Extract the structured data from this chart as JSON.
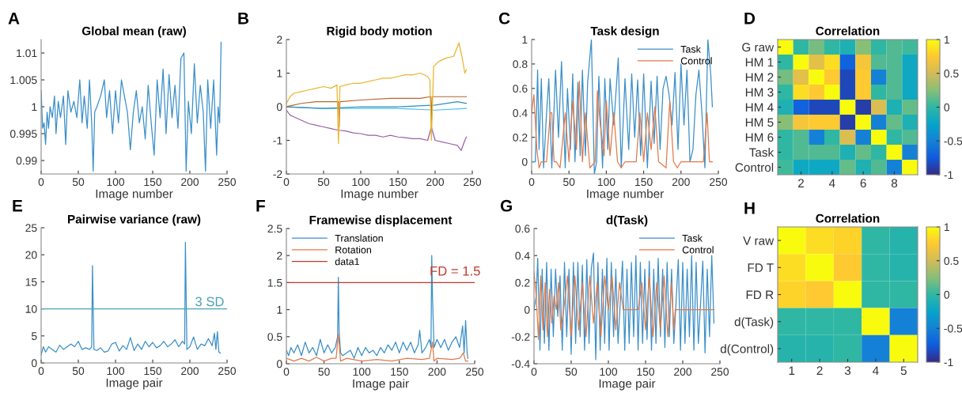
{
  "chart_data": [
    {
      "type": "line",
      "title": "Global mean (raw)",
      "xlabel": "Image number",
      "annotations": [
        "A"
      ],
      "xlim": [
        0,
        250
      ],
      "xticks": [
        0,
        50,
        100,
        150,
        200,
        250
      ],
      "ylim": [
        0.9875,
        1.0125
      ],
      "yticks": [
        0.99,
        0.995,
        1,
        1.005,
        1.01
      ],
      "grid": false,
      "legend": false,
      "series": [
        {
          "color": "#3a8fc8",
          "x": [
            0,
            2,
            4,
            6,
            8,
            10,
            12,
            15,
            18,
            20,
            23,
            26,
            30,
            33,
            36,
            40,
            44,
            48,
            52,
            55,
            58,
            62,
            65,
            68,
            70,
            72,
            75,
            80,
            85,
            88,
            92,
            96,
            100,
            104,
            108,
            112,
            116,
            120,
            124,
            128,
            132,
            136,
            140,
            144,
            148,
            152,
            156,
            160,
            164,
            168,
            172,
            176,
            180,
            184,
            188,
            192,
            195,
            198,
            202,
            206,
            210,
            214,
            218,
            221,
            224,
            228,
            232,
            236,
            238,
            240,
            242
          ],
          "values": [
            1.003,
            0.996,
            0.997,
            0.993,
            0.999,
            0.996,
            1.0,
            0.998,
            1.002,
            0.995,
            1.001,
            0.998,
            1.002,
            0.993,
            1.003,
            0.999,
            1.001,
            0.998,
            1.005,
            0.997,
            1.002,
            0.996,
            1.005,
            0.997,
            0.988,
            0.999,
            1.0,
            1.002,
            1.005,
            0.998,
            1.003,
            0.995,
            1.003,
            0.997,
            1.005,
            1.002,
            0.999,
            0.992,
            0.999,
            1.003,
            0.997,
            1.0,
            0.994,
            1.004,
            0.997,
            0.991,
            1.005,
            0.998,
            1.007,
            0.995,
            1.006,
            0.998,
            1.004,
            0.996,
            1.009,
            1.01,
            0.988,
            1.001,
            0.995,
            1.008,
            0.997,
            1.004,
            0.999,
            0.988,
            1.005,
            0.996,
            1.005,
            0.991,
            1.0,
            0.997,
            1.012
          ]
        }
      ]
    },
    {
      "type": "line",
      "title": "Rigid body motion",
      "xlabel": "Image number",
      "annotations": [
        "B"
      ],
      "xlim": [
        0,
        250
      ],
      "xticks": [
        0,
        50,
        100,
        150,
        200,
        250
      ],
      "ylim": [
        -2,
        2
      ],
      "yticks": [
        -2,
        -1,
        0,
        1,
        2
      ],
      "grid": false,
      "legend": false,
      "series": [
        {
          "color": "#4dbeee",
          "x": [
            0,
            50,
            100,
            150,
            200,
            242
          ],
          "values": [
            0,
            -0.05,
            -0.05,
            -0.05,
            -0.1,
            -0.05
          ]
        },
        {
          "color": "#2f8fbf",
          "x": [
            0,
            50,
            100,
            150,
            200,
            230,
            242
          ],
          "values": [
            0,
            -0.05,
            0.0,
            0.0,
            0.05,
            0.15,
            0.1
          ]
        },
        {
          "color": "#b8652a",
          "x": [
            0,
            20,
            40,
            60,
            70,
            71,
            72,
            100,
            140,
            180,
            194,
            195,
            196,
            220,
            242
          ],
          "values": [
            0,
            0.1,
            0.15,
            0.15,
            0.15,
            -0.6,
            0.15,
            0.2,
            0.25,
            0.25,
            0.3,
            -0.5,
            0.3,
            0.3,
            0.3
          ]
        },
        {
          "color": "#9a5fa8",
          "x": [
            0,
            5,
            10,
            20,
            30,
            40,
            50,
            60,
            70,
            80,
            90,
            100,
            110,
            120,
            130,
            140,
            150,
            160,
            170,
            180,
            190,
            195,
            200,
            210,
            220,
            230,
            235,
            240,
            242
          ],
          "values": [
            -0.1,
            -0.25,
            -0.3,
            -0.4,
            -0.5,
            -0.55,
            -0.6,
            -0.65,
            -0.7,
            -0.72,
            -0.78,
            -0.8,
            -0.85,
            -0.85,
            -0.9,
            -0.85,
            -0.9,
            -0.92,
            -0.95,
            -0.95,
            -1.0,
            -0.6,
            -1.0,
            -1.05,
            -1.1,
            -1.15,
            -1.3,
            -1.0,
            -0.9
          ]
        },
        {
          "color": "#e8b52e",
          "x": [
            0,
            5,
            10,
            20,
            30,
            40,
            50,
            60,
            68,
            70,
            72,
            80,
            90,
            100,
            110,
            120,
            130,
            140,
            150,
            160,
            170,
            180,
            190,
            193,
            195,
            198,
            205,
            215,
            225,
            232,
            236,
            240,
            242
          ],
          "values": [
            0.1,
            0.3,
            0.4,
            0.45,
            0.5,
            0.55,
            0.6,
            0.55,
            0.65,
            -1.1,
            0.6,
            0.65,
            0.7,
            0.7,
            0.75,
            0.8,
            0.85,
            0.85,
            0.9,
            0.95,
            0.95,
            1.0,
            0.9,
            0.8,
            -1.0,
            1.2,
            1.35,
            1.45,
            1.5,
            1.9,
            1.5,
            1.0,
            1.1
          ]
        }
      ]
    },
    {
      "type": "line",
      "title": "Task design",
      "xlabel": "Image number",
      "annotations": [
        "C"
      ],
      "xlim": [
        0,
        250
      ],
      "xticks": [
        0,
        50,
        100,
        150,
        200,
        250
      ],
      "ylim": [
        -0.1,
        1
      ],
      "yticks": [
        0,
        0.2,
        0.4,
        0.6,
        0.8,
        1
      ],
      "grid": false,
      "legend": "top right",
      "series": [
        {
          "name": "Task",
          "color": "#3a8fc8",
          "x": [
            0,
            5,
            8,
            10,
            13,
            16,
            20,
            23,
            27,
            32,
            36,
            40,
            45,
            48,
            52,
            55,
            58,
            62,
            65,
            68,
            72,
            75,
            80,
            84,
            87,
            90,
            95,
            98,
            102,
            105,
            110,
            116,
            120,
            125,
            130,
            134,
            138,
            142,
            146,
            150,
            155,
            160,
            164,
            168,
            172,
            176,
            180,
            184,
            188,
            192,
            196,
            200,
            204,
            208,
            212,
            216,
            220,
            224,
            228,
            232,
            236,
            240,
            242
          ],
          "values": [
            0,
            0,
            0.75,
            0.1,
            0.68,
            -0.05,
            0.4,
            0.68,
            -0.05,
            0.75,
            0.2,
            0.82,
            -0.05,
            0.6,
            0.1,
            0.72,
            0,
            0.65,
            0.05,
            0.75,
            0.05,
            0.65,
            1.0,
            -0.1,
            0.0,
            0.7,
            -0.05,
            0.68,
            0.1,
            0.68,
            0.3,
            0.85,
            -0.05,
            0.68,
            0.1,
            0.72,
            0.2,
            0.67,
            0.05,
            0.72,
            -0.05,
            0.66,
            0.15,
            0.7,
            0.1,
            0.6,
            0.7,
            0.55,
            0.3,
            0.73,
            0.1,
            0.8,
            0.3,
            0.75,
            0,
            0.1,
            0.55,
            0.75,
            0.4,
            -0.05,
            1.0,
            0.7,
            0.45
          ]
        },
        {
          "name": "Control",
          "color": "#e07a4a",
          "x": [
            0,
            3,
            7,
            10,
            13,
            20,
            25,
            27,
            30,
            33,
            38,
            45,
            50,
            55,
            60,
            64,
            68,
            72,
            78,
            85,
            88,
            92,
            97,
            100,
            105,
            110,
            115,
            120,
            125,
            130,
            140,
            145,
            150,
            155,
            160,
            165,
            170,
            180,
            185,
            190,
            195,
            200,
            210,
            220,
            230,
            235,
            238,
            242
          ],
          "values": [
            0.4,
            0.55,
            0.1,
            -0.05,
            0.0,
            0.0,
            0.4,
            0.4,
            0.0,
            0.0,
            -0.05,
            0.4,
            0.0,
            0.5,
            0.1,
            0.66,
            0.0,
            0.4,
            -0.05,
            0.0,
            0.58,
            0.3,
            0.05,
            0.5,
            0.05,
            0.4,
            0.0,
            -0.05,
            0.0,
            0.0,
            0.0,
            0.4,
            0.0,
            0.4,
            0.1,
            0.45,
            0.0,
            -0.05,
            0.5,
            0.0,
            -0.05,
            0.0,
            0.0,
            0.0,
            0.0,
            0.4,
            0.0,
            0.0
          ]
        }
      ]
    },
    {
      "type": "heatmap",
      "title": "Correlation",
      "annotations": [
        "D"
      ],
      "categories": [
        null,
        "2",
        null,
        "4",
        null,
        "6",
        null,
        "8",
        null
      ],
      "y_categories": [
        "G raw",
        "HM 1",
        "HM 2",
        "HM 3",
        "HM 4",
        "HM 5",
        "HM 6",
        "Task",
        "Control"
      ],
      "clim": [
        -1,
        1
      ],
      "cticks": [
        -1,
        -0.5,
        0,
        0.5,
        1
      ],
      "cells": [
        [
          1,
          0.0,
          0.2,
          0.0,
          -0.1,
          0.25,
          0.0,
          0.1,
          0.05
        ],
        [
          0.0,
          1,
          0.6,
          0.85,
          -0.7,
          0.7,
          0.1,
          0.1,
          -0.2
        ],
        [
          0.2,
          0.6,
          1,
          0.75,
          -0.85,
          0.75,
          -0.5,
          0.1,
          -0.2
        ],
        [
          0.0,
          0.85,
          0.75,
          1,
          -0.85,
          0.75,
          0.0,
          0.1,
          -0.2
        ],
        [
          -0.1,
          -0.7,
          -0.85,
          -0.85,
          1,
          -0.9,
          0.55,
          -0.1,
          0.15
        ],
        [
          0.25,
          0.7,
          0.75,
          0.75,
          -0.9,
          1,
          -0.5,
          0.15,
          -0.1
        ],
        [
          0.0,
          0.1,
          -0.5,
          0.0,
          0.55,
          -0.5,
          1,
          0.0,
          0.1
        ],
        [
          0.0,
          0.1,
          0.1,
          0.1,
          -0.1,
          0.15,
          0.0,
          1,
          -0.5
        ],
        [
          0.05,
          -0.2,
          -0.2,
          -0.2,
          0.15,
          -0.1,
          0.1,
          -0.5,
          1
        ]
      ]
    },
    {
      "type": "line",
      "title": "Pairwise variance (raw)",
      "xlabel": "Image pair",
      "annotations": [
        "E"
      ],
      "xlim": [
        0,
        250
      ],
      "xticks": [
        0,
        50,
        100,
        150,
        200,
        250
      ],
      "ylim": [
        0,
        25
      ],
      "yticks": [
        0,
        5,
        10,
        15,
        20,
        25
      ],
      "grid": false,
      "legend": false,
      "ref_lines": [
        {
          "axis": "y",
          "value": 10,
          "label": "3 SD",
          "color": "#4aa3b5"
        }
      ],
      "series": [
        {
          "color": "#3a8fc8",
          "x": [
            0,
            3,
            6,
            10,
            15,
            20,
            25,
            30,
            35,
            40,
            45,
            50,
            55,
            60,
            65,
            68,
            69,
            71,
            75,
            80,
            85,
            90,
            95,
            100,
            105,
            110,
            115,
            120,
            125,
            130,
            135,
            140,
            145,
            150,
            155,
            160,
            165,
            170,
            175,
            180,
            185,
            190,
            193,
            194,
            196,
            200,
            205,
            210,
            215,
            220,
            225,
            230,
            233,
            235,
            237,
            239,
            241
          ],
          "values": [
            1.5,
            3,
            2,
            3,
            2.5,
            2,
            3.3,
            2.5,
            3,
            3.5,
            3,
            4,
            2.5,
            2.8,
            2.5,
            3,
            18,
            2.5,
            2.3,
            2.8,
            2,
            2.2,
            3.5,
            3.8,
            2.2,
            3.2,
            2.5,
            4.7,
            2.3,
            3.5,
            2.5,
            4,
            3,
            3.8,
            2.8,
            3.2,
            4,
            3,
            3.5,
            4.3,
            3,
            4,
            3.5,
            22.3,
            2.5,
            3,
            4.8,
            2.5,
            3.5,
            3.2,
            4.5,
            3.2,
            5.5,
            2.5,
            5.8,
            2,
            1.8
          ]
        }
      ]
    },
    {
      "type": "line",
      "title": "Framewise displacement",
      "xlabel": "Image pair",
      "annotations": [
        "F",
        {
          "text": "FD = 1.5",
          "x": 224,
          "y": 1.5
        }
      ],
      "xlim": [
        0,
        250
      ],
      "xticks": [
        0,
        50,
        100,
        150,
        200,
        250
      ],
      "ylim": [
        0,
        2.5
      ],
      "yticks": [
        0,
        0.5,
        1,
        1.5,
        2,
        2.5
      ],
      "grid": false,
      "legend": "top left",
      "series": [
        {
          "name": "Translation",
          "color": "#3a8fc8",
          "x": [
            0,
            3,
            6,
            10,
            15,
            20,
            25,
            30,
            35,
            40,
            45,
            50,
            55,
            60,
            65,
            68,
            69,
            70,
            72,
            75,
            80,
            85,
            90,
            95,
            100,
            105,
            110,
            115,
            120,
            125,
            130,
            135,
            140,
            145,
            150,
            155,
            160,
            165,
            170,
            175,
            177,
            180,
            185,
            190,
            192,
            193,
            194,
            196,
            200,
            205,
            210,
            215,
            220,
            225,
            230,
            234,
            236,
            238,
            240,
            241
          ],
          "values": [
            0.25,
            0.15,
            0.3,
            0.2,
            0.35,
            0.15,
            0.4,
            0.2,
            0.3,
            0.15,
            0.45,
            0.2,
            0.35,
            0.2,
            0.3,
            0.5,
            1.6,
            0.6,
            0.2,
            0.15,
            0.2,
            0.25,
            0.1,
            0.3,
            0.15,
            0.3,
            0.2,
            0.25,
            0.15,
            0.3,
            0.2,
            0.35,
            0.25,
            0.4,
            0.2,
            0.4,
            0.25,
            0.4,
            0.2,
            0.35,
            0.62,
            0.2,
            0.3,
            0.45,
            0.3,
            2.0,
            1.25,
            0.3,
            0.45,
            0.3,
            0.45,
            0.25,
            0.4,
            0.5,
            0.3,
            0.7,
            0.2,
            0.8,
            0.2,
            0.1
          ]
        },
        {
          "name": "Rotation",
          "color": "#e07a4a",
          "x": [
            0,
            10,
            20,
            30,
            40,
            50,
            60,
            66,
            69,
            72,
            80,
            100,
            120,
            140,
            160,
            180,
            190,
            194,
            196,
            200,
            220,
            230,
            235,
            238,
            241
          ],
          "values": [
            0.1,
            0.05,
            0.1,
            0.05,
            0.12,
            0.05,
            0.1,
            0.1,
            0.55,
            0.05,
            0.1,
            0.05,
            0.08,
            0.05,
            0.1,
            0.08,
            0.1,
            0.4,
            0.05,
            0.1,
            0.08,
            0.1,
            0.2,
            0.05,
            0.05
          ]
        },
        {
          "name": "data1",
          "color": "#c0392b",
          "x": [
            0,
            250
          ],
          "values": [
            1.5,
            1.5
          ]
        }
      ]
    },
    {
      "type": "line",
      "title": "d(Task)",
      "xlabel": "Image pair",
      "annotations": [
        "G"
      ],
      "xlim": [
        0,
        250
      ],
      "xticks": [
        0,
        50,
        100,
        150,
        200,
        250
      ],
      "ylim": [
        -0.4,
        0.6
      ],
      "yticks": [
        -0.4,
        -0.2,
        0,
        0.2,
        0.4,
        0.6
      ],
      "grid": false,
      "legend": "top right",
      "series": [
        {
          "name": "Task",
          "color": "#3a8fc8",
          "x": [
            0,
            3,
            5,
            8,
            11,
            14,
            17,
            20,
            23,
            26,
            29,
            32,
            35,
            38,
            41,
            44,
            47,
            50,
            53,
            56,
            59,
            62,
            65,
            68,
            71,
            74,
            77,
            80,
            83,
            86,
            89,
            92,
            95,
            98,
            101,
            104,
            107,
            110,
            113,
            116,
            119,
            122,
            125,
            128,
            131,
            134,
            137,
            140,
            143,
            146,
            149,
            152,
            155,
            158,
            161,
            164,
            167,
            170,
            173,
            176,
            179,
            182,
            185,
            188,
            191,
            194,
            197,
            200,
            203,
            206,
            209,
            212,
            215,
            218,
            221,
            224,
            227,
            230,
            233,
            236,
            239,
            242
          ],
          "values": [
            0,
            0.1,
            0.38,
            -0.3,
            0.3,
            -0.25,
            0.35,
            -0.3,
            0.3,
            -0.2,
            0.3,
            -0.05,
            0.25,
            -0.3,
            0.35,
            -0.2,
            0.3,
            -0.33,
            0.35,
            -0.25,
            0.35,
            -0.2,
            0.33,
            -0.3,
            0.37,
            -0.25,
            0.3,
            0.42,
            -0.37,
            0.35,
            -0.3,
            0.3,
            -0.25,
            0.38,
            -0.3,
            0.35,
            -0.2,
            0.3,
            -0.25,
            0.05,
            0.36,
            -0.3,
            0.3,
            -0.25,
            0.35,
            -0.2,
            0.4,
            -0.3,
            0.35,
            -0.25,
            0.3,
            -0.22,
            0.36,
            -0.3,
            0.3,
            -0.25,
            0.38,
            -0.2,
            0.3,
            -0.28,
            0.35,
            -0.2,
            0.3,
            -0.25,
            0.05,
            0.37,
            -0.3,
            0.35,
            -0.25,
            0.3,
            -0.2,
            0.4,
            -0.3,
            0.35,
            -0.25,
            0.05,
            0.36,
            -0.32,
            0.3,
            -0.2,
            0.4,
            -0.1
          ]
        },
        {
          "name": "Control",
          "color": "#e07a4a",
          "x": [
            0,
            3,
            6,
            9,
            12,
            15,
            18,
            21,
            24,
            27,
            30,
            33,
            36,
            40,
            45,
            50,
            55,
            60,
            65,
            70,
            75,
            80,
            85,
            90,
            95,
            100,
            105,
            110,
            115,
            120,
            130,
            140,
            145,
            150,
            155,
            160,
            165,
            170,
            175,
            180,
            185,
            188,
            190,
            195,
            200,
            210,
            220,
            230,
            242
          ],
          "values": [
            0.28,
            0.1,
            -0.22,
            0.25,
            -0.15,
            0.2,
            -0.2,
            0.15,
            -0.1,
            0.1,
            0.0,
            0.2,
            -0.15,
            0.0,
            0.25,
            -0.2,
            0.25,
            -0.15,
            0.2,
            -0.2,
            0.25,
            -0.1,
            0.2,
            -0.2,
            0.25,
            0.0,
            0.25,
            -0.15,
            0.2,
            0.0,
            0.0,
            0.0,
            0.2,
            -0.15,
            0.25,
            -0.2,
            0.2,
            -0.15,
            0.25,
            -0.2,
            0.2,
            -0.15,
            0.0,
            0.0,
            0.0,
            0.0,
            0.0,
            0.0,
            0.0
          ]
        }
      ]
    },
    {
      "type": "heatmap",
      "title": "Correlation",
      "annotations": [
        "H"
      ],
      "categories": [
        "1",
        "2",
        "3",
        "4",
        "5"
      ],
      "y_categories": [
        "V raw",
        "FD T",
        "FD R",
        "d(Task)",
        "d(Control)"
      ],
      "clim": [
        -1,
        1
      ],
      "cticks": [
        -1,
        -0.5,
        0,
        0.5,
        1
      ],
      "cells": [
        [
          1,
          0.85,
          0.8,
          0.0,
          -0.05
        ],
        [
          0.85,
          1,
          0.75,
          0.0,
          -0.05
        ],
        [
          0.8,
          0.75,
          1,
          0.0,
          0.0
        ],
        [
          0.0,
          0.0,
          0.0,
          1,
          -0.5
        ],
        [
          -0.05,
          -0.05,
          0.0,
          -0.5,
          1
        ]
      ]
    }
  ]
}
